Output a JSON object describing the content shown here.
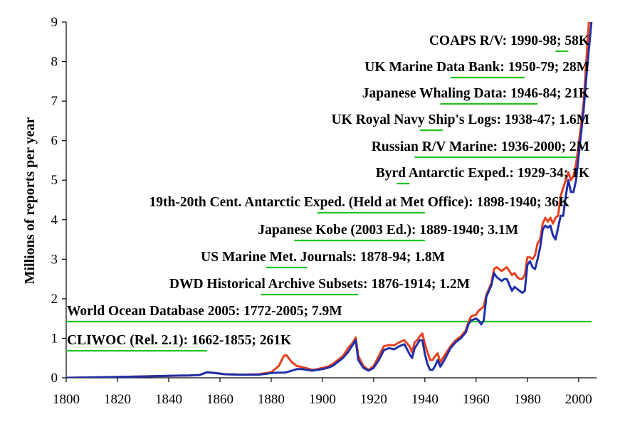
{
  "chart_data": {
    "type": "line",
    "title": "",
    "xlabel": "",
    "ylabel": "Millions of reports per year",
    "xlim": [
      1800,
      2007
    ],
    "ylim": [
      0,
      9
    ],
    "xticks": [
      1800,
      1820,
      1840,
      1860,
      1880,
      1900,
      1920,
      1940,
      1960,
      1980,
      2000
    ],
    "yticks": [
      0,
      1,
      2,
      3,
      4,
      5,
      6,
      7,
      8,
      9
    ],
    "grid": false,
    "legend": "none",
    "series": [
      {
        "color": "#e8401c",
        "x": [
          1800,
          1820,
          1840,
          1848,
          1852,
          1855,
          1858,
          1862,
          1868,
          1875,
          1878,
          1880,
          1883,
          1885,
          1886,
          1888,
          1890,
          1892,
          1894,
          1896,
          1898,
          1900,
          1902,
          1904,
          1906,
          1908,
          1910,
          1912,
          1913,
          1914,
          1916,
          1918,
          1920,
          1922,
          1924,
          1926,
          1928,
          1930,
          1932,
          1934,
          1935,
          1936,
          1937,
          1938,
          1939,
          1940,
          1941,
          1942,
          1943,
          1944,
          1945,
          1946,
          1947,
          1948,
          1950,
          1952,
          1954,
          1956,
          1957,
          1958,
          1960,
          1961,
          1962,
          1963,
          1964,
          1965,
          1966,
          1967,
          1968,
          1970,
          1971,
          1972,
          1973,
          1974,
          1975,
          1976,
          1977,
          1978,
          1979,
          1980,
          1981,
          1982,
          1983,
          1984,
          1985,
          1986,
          1987,
          1988,
          1989,
          1990,
          1991,
          1992,
          1993,
          1994,
          1995,
          1996,
          1997,
          1998,
          1999,
          2000,
          2001,
          2002,
          2003,
          2004,
          2005
        ],
        "values": [
          0,
          0.02,
          0.05,
          0.06,
          0.07,
          0.14,
          0.12,
          0.09,
          0.08,
          0.09,
          0.12,
          0.14,
          0.3,
          0.56,
          0.57,
          0.4,
          0.3,
          0.27,
          0.24,
          0.2,
          0.22,
          0.25,
          0.28,
          0.35,
          0.45,
          0.55,
          0.75,
          0.9,
          1.02,
          0.55,
          0.3,
          0.2,
          0.3,
          0.55,
          0.8,
          0.83,
          0.82,
          0.9,
          0.95,
          0.8,
          0.65,
          0.9,
          0.95,
          1.05,
          1.12,
          0.85,
          0.65,
          0.45,
          0.45,
          0.55,
          0.62,
          0.38,
          0.5,
          0.6,
          0.8,
          0.95,
          1.05,
          1.2,
          1.4,
          1.55,
          1.6,
          1.7,
          1.75,
          1.8,
          2.1,
          2.25,
          2.4,
          2.75,
          2.8,
          2.7,
          2.75,
          2.8,
          2.7,
          2.6,
          2.65,
          2.55,
          2.5,
          2.5,
          2.6,
          3.05,
          3.05,
          3.0,
          3.1,
          3.4,
          3.5,
          3.9,
          4.05,
          3.95,
          4.05,
          3.9,
          4.05,
          4.1,
          4.6,
          4.8,
          5.0,
          5.2,
          5.0,
          5.1,
          5.4,
          5.9,
          6.4,
          7.0,
          8.0,
          9.0,
          9.0
        ]
      },
      {
        "color": "#1f2fa8",
        "x": [
          1800,
          1820,
          1840,
          1848,
          1852,
          1855,
          1858,
          1862,
          1868,
          1875,
          1878,
          1880,
          1883,
          1885,
          1886,
          1888,
          1890,
          1892,
          1894,
          1896,
          1898,
          1900,
          1902,
          1904,
          1906,
          1908,
          1910,
          1912,
          1913,
          1914,
          1916,
          1918,
          1920,
          1922,
          1924,
          1926,
          1928,
          1930,
          1932,
          1934,
          1935,
          1936,
          1937,
          1938,
          1939,
          1940,
          1941,
          1942,
          1943,
          1944,
          1945,
          1946,
          1947,
          1948,
          1950,
          1952,
          1954,
          1956,
          1957,
          1958,
          1960,
          1961,
          1962,
          1963,
          1964,
          1965,
          1966,
          1967,
          1968,
          1970,
          1971,
          1972,
          1973,
          1974,
          1975,
          1976,
          1977,
          1978,
          1979,
          1980,
          1981,
          1982,
          1983,
          1984,
          1985,
          1986,
          1987,
          1988,
          1989,
          1990,
          1991,
          1992,
          1993,
          1994,
          1995,
          1996,
          1997,
          1998,
          1999,
          2000,
          2001,
          2002,
          2003,
          2004,
          2005
        ],
        "values": [
          0,
          0.02,
          0.05,
          0.06,
          0.07,
          0.14,
          0.12,
          0.09,
          0.08,
          0.08,
          0.1,
          0.12,
          0.13,
          0.13,
          0.14,
          0.18,
          0.22,
          0.22,
          0.2,
          0.18,
          0.2,
          0.22,
          0.25,
          0.3,
          0.4,
          0.5,
          0.65,
          0.85,
          0.95,
          0.45,
          0.25,
          0.18,
          0.25,
          0.45,
          0.7,
          0.75,
          0.72,
          0.8,
          0.85,
          0.6,
          0.5,
          0.75,
          0.85,
          0.95,
          0.95,
          0.6,
          0.35,
          0.2,
          0.2,
          0.3,
          0.45,
          0.28,
          0.38,
          0.5,
          0.75,
          0.9,
          1.0,
          1.15,
          1.35,
          1.45,
          1.5,
          1.45,
          1.35,
          1.45,
          2.05,
          2.2,
          2.35,
          2.65,
          2.55,
          2.45,
          2.5,
          2.5,
          2.35,
          2.2,
          2.3,
          2.25,
          2.2,
          2.15,
          2.2,
          2.85,
          2.95,
          2.8,
          2.75,
          3.0,
          3.3,
          3.75,
          3.85,
          3.8,
          3.85,
          3.6,
          3.5,
          3.8,
          4.1,
          4.1,
          4.6,
          5.0,
          4.7,
          4.7,
          5.0,
          5.6,
          6.2,
          6.8,
          7.6,
          8.3,
          9.0
        ]
      }
    ],
    "annotations": [
      {
        "text": "COAPS R/V: 1990-98; 58K",
        "underline": [
          1991,
          1996
        ]
      },
      {
        "text": "UK Marine Data Bank: 1950-79; 28M",
        "underline": [
          1950,
          1979
        ]
      },
      {
        "text": "Japanese Whaling Data: 1946-84; 21K",
        "underline": [
          1946,
          1984
        ]
      },
      {
        "text": "UK Royal Navy Ship's Logs: 1938-47; 1.6M",
        "underline": [
          1938,
          1947
        ]
      },
      {
        "text": "Russian R/V Marine: 1936-2000; 2M",
        "underline": [
          1936,
          2000
        ]
      },
      {
        "text": "Byrd Antarctic Exped.: 1929-34; 1K",
        "underline": [
          1929,
          1934
        ]
      },
      {
        "text": "19th-20th Cent. Antarctic Exped. (Held at Met Office): 1898-1940; 36K",
        "underline": [
          1898,
          1940
        ]
      },
      {
        "text": "Japanese Kobe (2003 Ed.): 1889-1940; 3.1M",
        "underline": [
          1889,
          1940
        ]
      },
      {
        "text": "US Marine Met. Journals: 1878-94; 1.8M",
        "underline": [
          1878,
          1894
        ]
      },
      {
        "text": "DWD Historical Archive Subsets: 1876-1914; 1.2M",
        "underline": [
          1876,
          1914
        ]
      },
      {
        "text": "World Ocean Database 2005: 1772-2005; 7.9M",
        "underline": [
          1772,
          2005
        ]
      },
      {
        "text": "CLIWOC (Rel. 2.1): 1662-1855; 261K",
        "underline": [
          1662,
          1855
        ]
      }
    ],
    "underline_color": "#22c322"
  }
}
